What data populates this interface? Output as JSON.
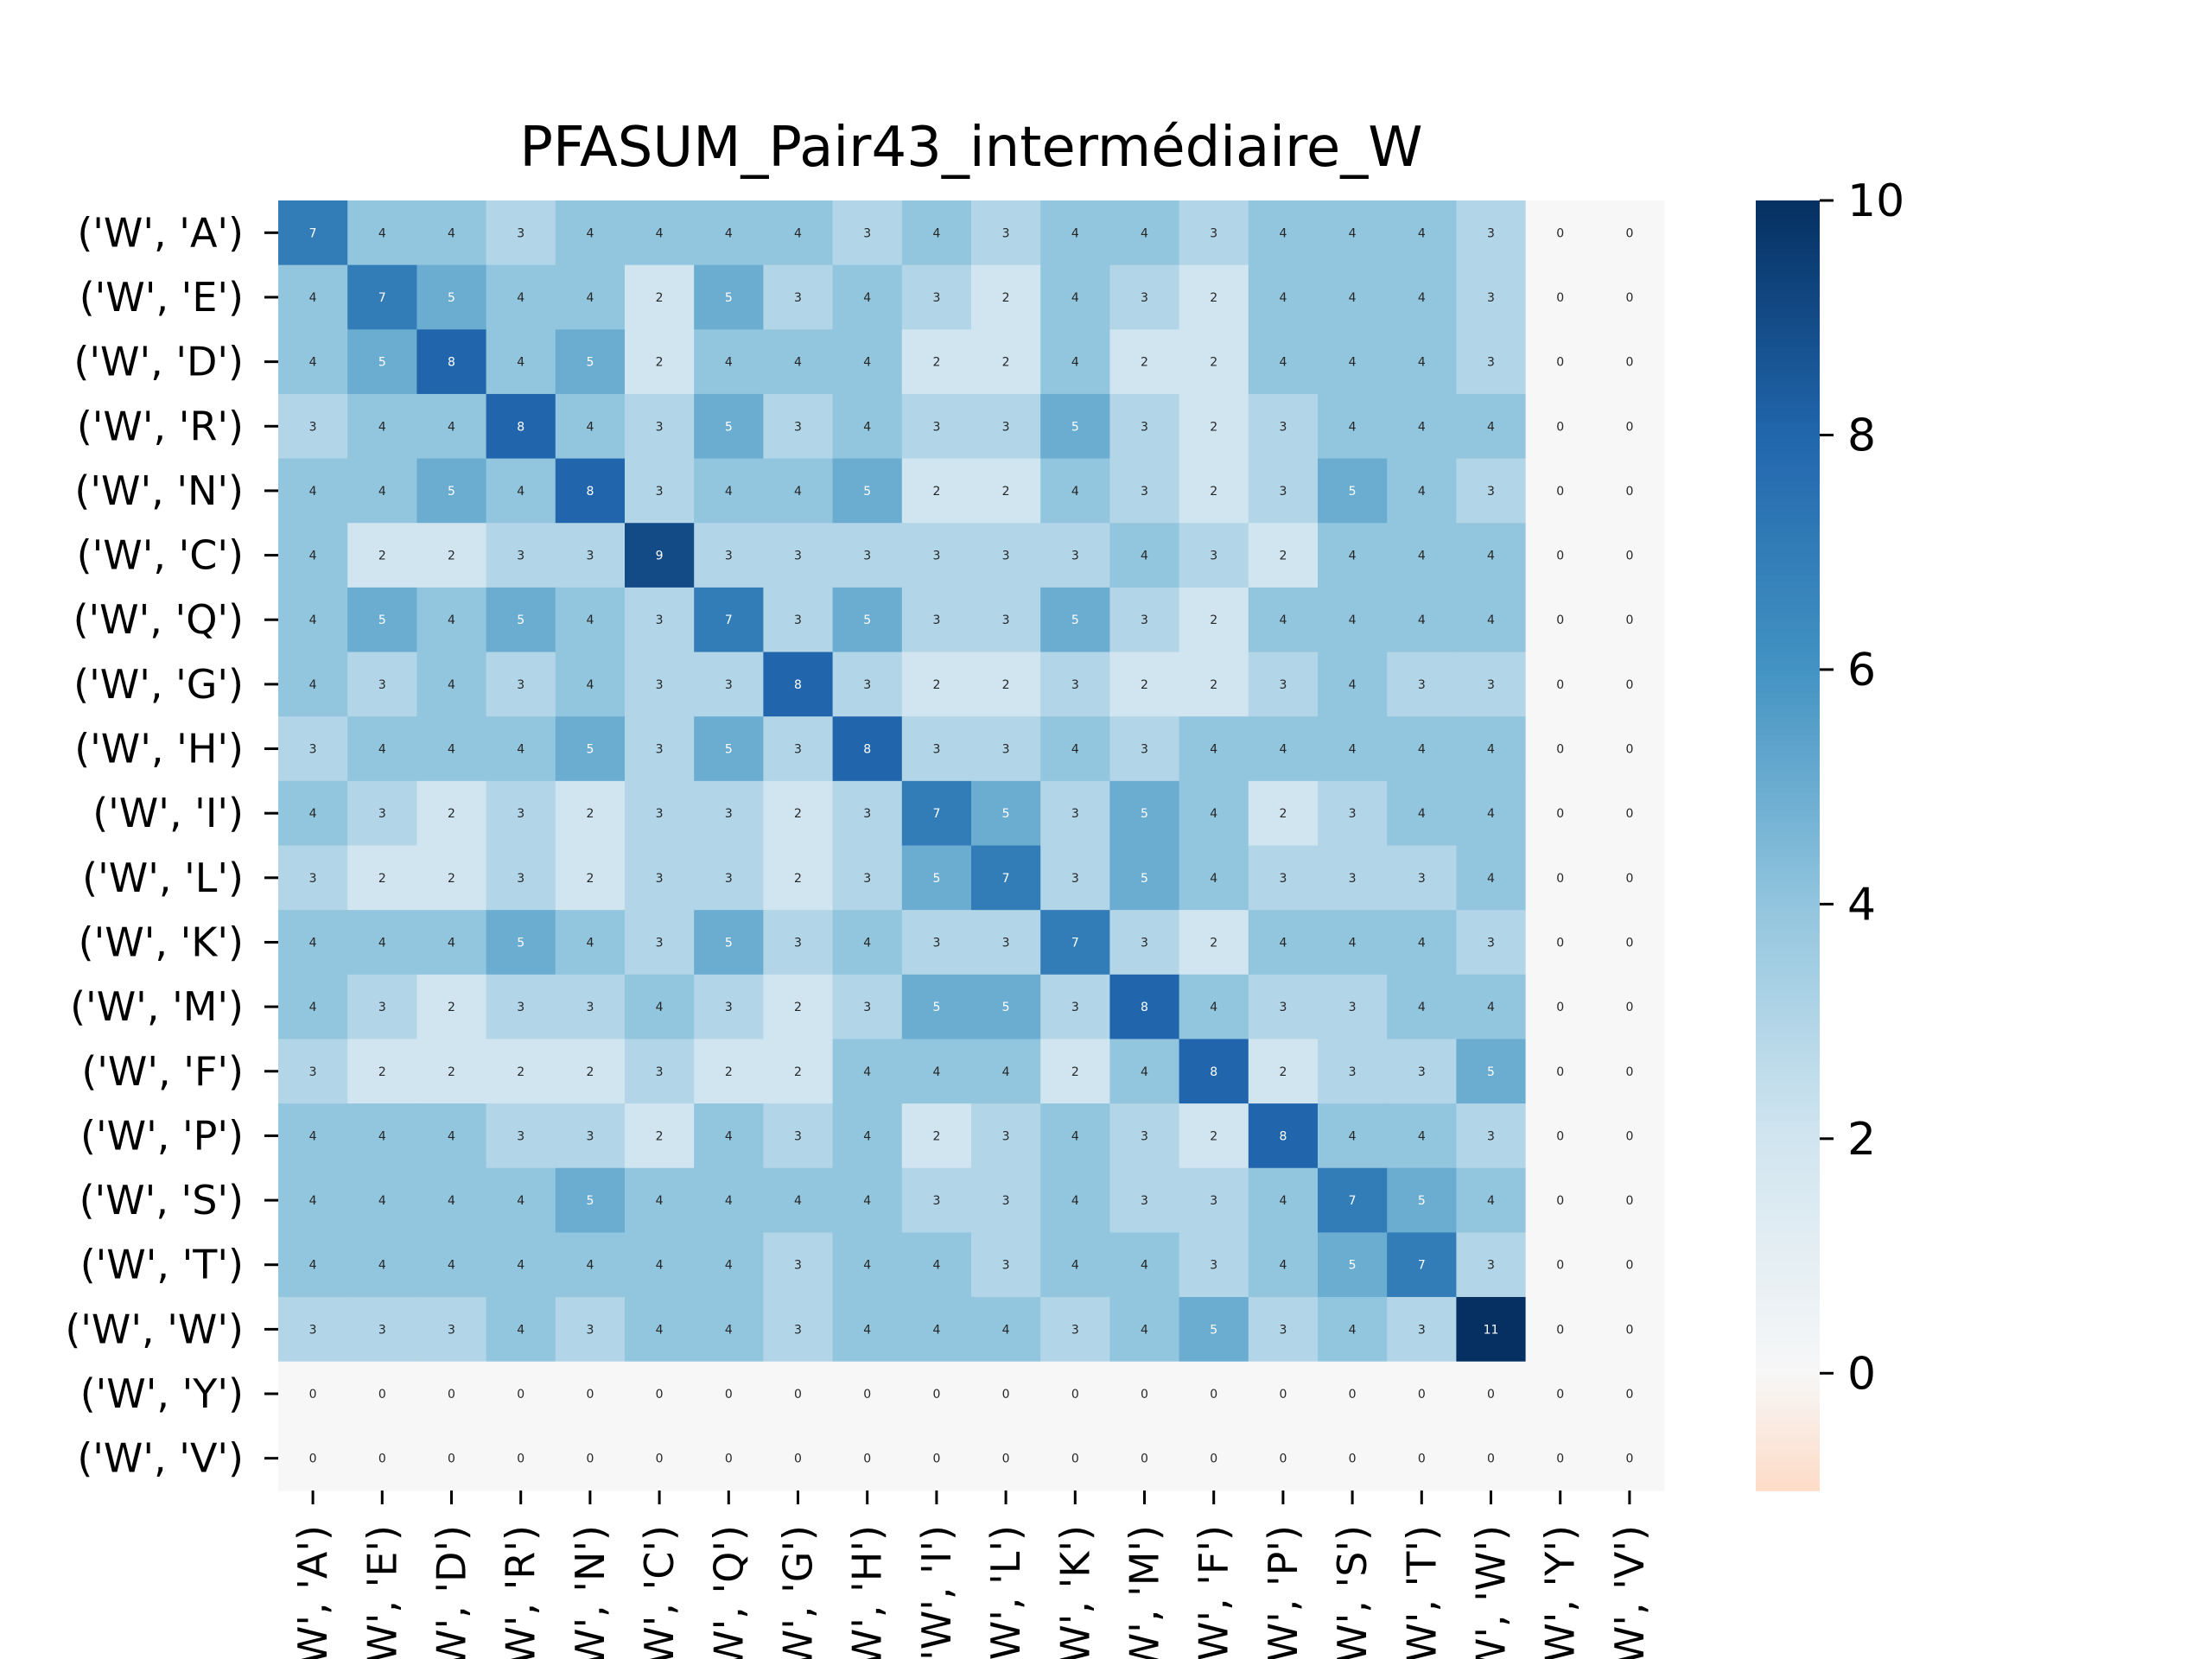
{
  "chart_data": {
    "type": "heatmap",
    "title": "PFASUM_Pair43_intermédiaire_W",
    "xlabel": "",
    "ylabel": "",
    "row_labels": [
      "('W', 'A')",
      "('W', 'E')",
      "('W', 'D')",
      "('W', 'R')",
      "('W', 'N')",
      "('W', 'C')",
      "('W', 'Q')",
      "('W', 'G')",
      "('W', 'H')",
      "('W', 'I')",
      "('W', 'L')",
      "('W', 'K')",
      "('W', 'M')",
      "('W', 'F')",
      "('W', 'P')",
      "('W', 'S')",
      "('W', 'T')",
      "('W', 'W')",
      "('W', 'Y')",
      "('W', 'V')"
    ],
    "col_labels": [
      "('W', 'A')",
      "('W', 'E')",
      "('W', 'D')",
      "('W', 'R')",
      "('W', 'N')",
      "('W', 'C')",
      "('W', 'Q')",
      "('W', 'G')",
      "('W', 'H')",
      "('W', 'I')",
      "('W', 'L')",
      "('W', 'K')",
      "('W', 'M')",
      "('W', 'F')",
      "('W', 'P')",
      "('W', 'S')",
      "('W', 'T')",
      "('W', 'W')",
      "('W', 'Y')",
      "('W', 'V')"
    ],
    "values": [
      [
        7,
        4,
        4,
        3,
        4,
        4,
        4,
        4,
        3,
        4,
        3,
        4,
        4,
        3,
        4,
        4,
        4,
        3,
        0,
        0
      ],
      [
        4,
        7,
        5,
        4,
        4,
        2,
        5,
        3,
        4,
        3,
        2,
        4,
        3,
        2,
        4,
        4,
        4,
        3,
        0,
        0
      ],
      [
        4,
        5,
        8,
        4,
        5,
        2,
        4,
        4,
        4,
        2,
        2,
        4,
        2,
        2,
        4,
        4,
        4,
        3,
        0,
        0
      ],
      [
        3,
        4,
        4,
        8,
        4,
        3,
        5,
        3,
        4,
        3,
        3,
        5,
        3,
        2,
        3,
        4,
        4,
        4,
        0,
        0
      ],
      [
        4,
        4,
        5,
        4,
        8,
        3,
        4,
        4,
        5,
        2,
        2,
        4,
        3,
        2,
        3,
        5,
        4,
        3,
        0,
        0
      ],
      [
        4,
        2,
        2,
        3,
        3,
        9,
        3,
        3,
        3,
        3,
        3,
        3,
        4,
        3,
        2,
        4,
        4,
        4,
        0,
        0
      ],
      [
        4,
        5,
        4,
        5,
        4,
        3,
        7,
        3,
        5,
        3,
        3,
        5,
        3,
        2,
        4,
        4,
        4,
        4,
        0,
        0
      ],
      [
        4,
        3,
        4,
        3,
        4,
        3,
        3,
        8,
        3,
        2,
        2,
        3,
        2,
        2,
        3,
        4,
        3,
        3,
        0,
        0
      ],
      [
        3,
        4,
        4,
        4,
        5,
        3,
        5,
        3,
        8,
        3,
        3,
        4,
        3,
        4,
        4,
        4,
        4,
        4,
        0,
        0
      ],
      [
        4,
        3,
        2,
        3,
        2,
        3,
        3,
        2,
        3,
        7,
        5,
        3,
        5,
        4,
        2,
        3,
        4,
        4,
        0,
        0
      ],
      [
        3,
        2,
        2,
        3,
        2,
        3,
        3,
        2,
        3,
        5,
        7,
        3,
        5,
        4,
        3,
        3,
        3,
        4,
        0,
        0
      ],
      [
        4,
        4,
        4,
        5,
        4,
        3,
        5,
        3,
        4,
        3,
        3,
        7,
        3,
        2,
        4,
        4,
        4,
        3,
        0,
        0
      ],
      [
        4,
        3,
        2,
        3,
        3,
        4,
        3,
        2,
        3,
        5,
        5,
        3,
        8,
        4,
        3,
        3,
        4,
        4,
        0,
        0
      ],
      [
        3,
        2,
        2,
        2,
        2,
        3,
        2,
        2,
        4,
        4,
        4,
        2,
        4,
        8,
        2,
        3,
        3,
        5,
        0,
        0
      ],
      [
        4,
        4,
        4,
        3,
        3,
        2,
        4,
        3,
        4,
        2,
        3,
        4,
        3,
        2,
        8,
        4,
        4,
        3,
        0,
        0
      ],
      [
        4,
        4,
        4,
        4,
        5,
        4,
        4,
        4,
        4,
        3,
        3,
        4,
        3,
        3,
        4,
        7,
        5,
        4,
        0,
        0
      ],
      [
        4,
        4,
        4,
        4,
        4,
        4,
        4,
        3,
        4,
        4,
        3,
        4,
        4,
        3,
        4,
        5,
        7,
        3,
        0,
        0
      ],
      [
        3,
        3,
        3,
        4,
        3,
        4,
        4,
        3,
        4,
        4,
        4,
        3,
        4,
        5,
        3,
        4,
        3,
        11,
        0,
        0
      ],
      [
        0,
        0,
        0,
        0,
        0,
        0,
        0,
        0,
        0,
        0,
        0,
        0,
        0,
        0,
        0,
        0,
        0,
        0,
        0,
        0
      ],
      [
        0,
        0,
        0,
        0,
        0,
        0,
        0,
        0,
        0,
        0,
        0,
        0,
        0,
        0,
        0,
        0,
        0,
        0,
        0,
        0
      ]
    ],
    "colorbar": {
      "vmin": -1,
      "vmax": 10,
      "ticks": [
        "0",
        "2",
        "4",
        "6",
        "8",
        "10"
      ],
      "colormap": "RdBu diverging, blue positive"
    },
    "grid": false,
    "legend": "colorbar right"
  }
}
